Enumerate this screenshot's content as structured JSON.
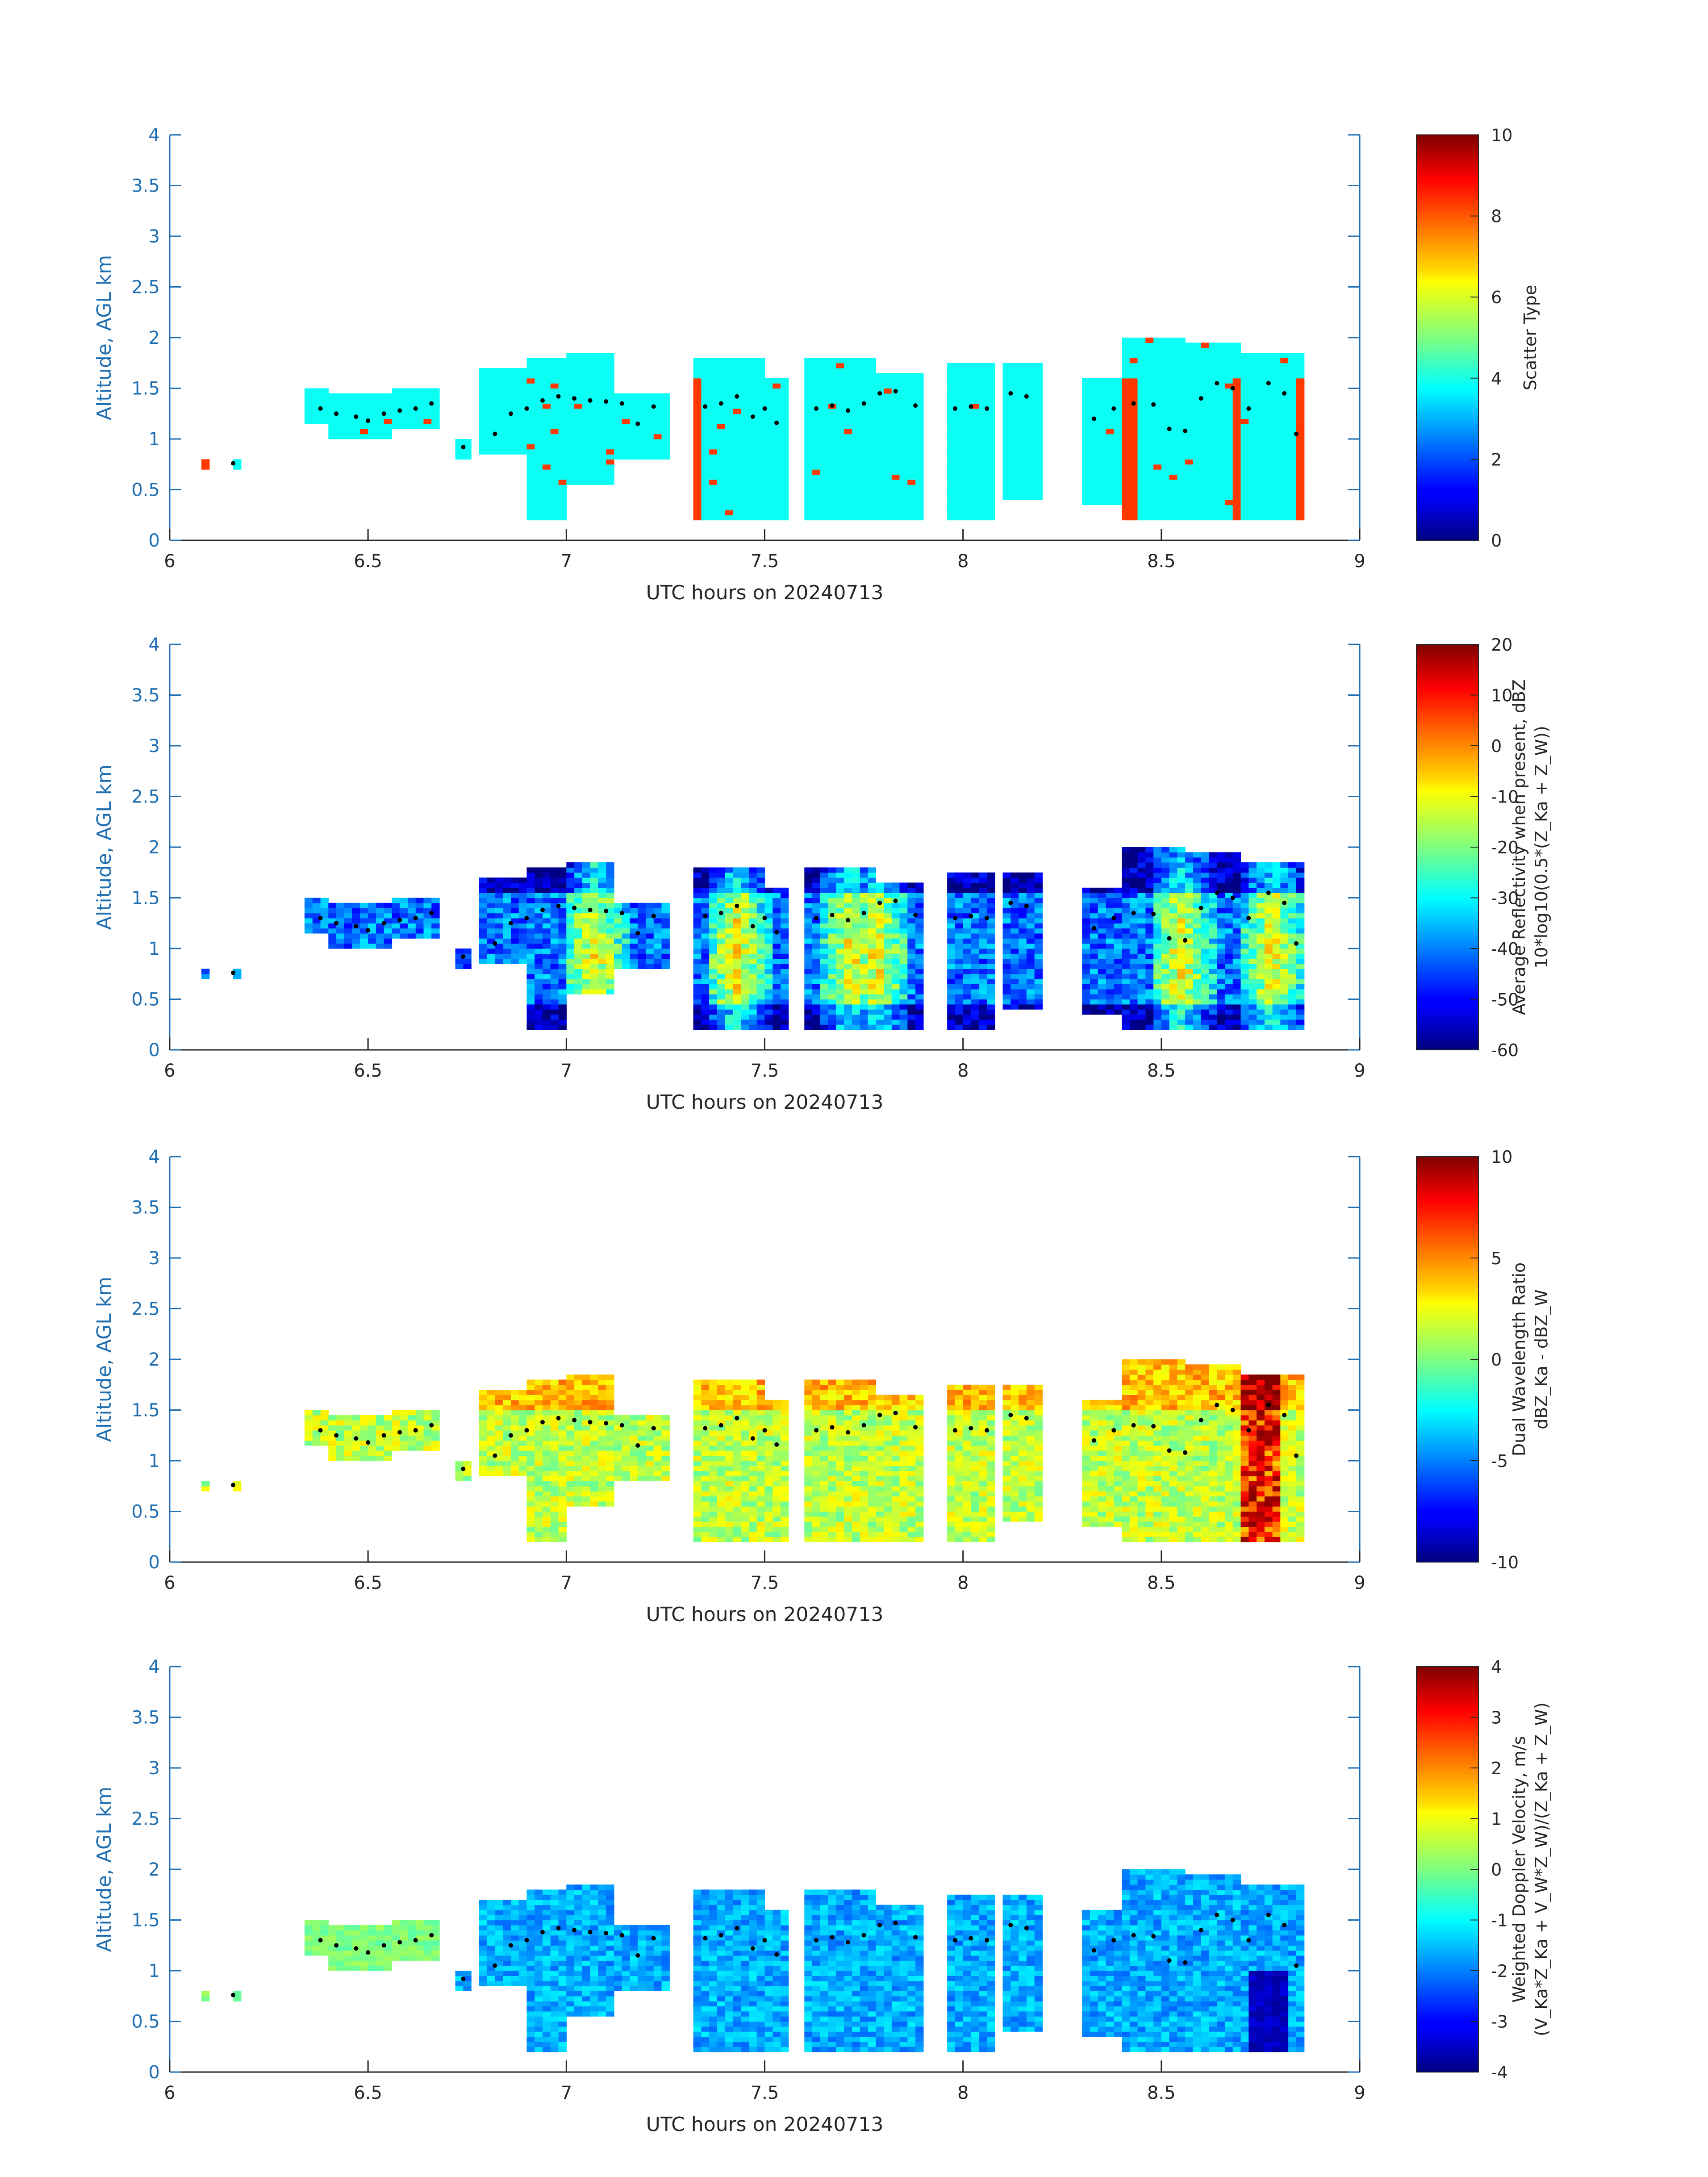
{
  "chart_data": [
    {
      "type": "heatmap",
      "panel": "scatter-type",
      "xlabel": "UTC hours on 20240713",
      "ylabel": "Altitude, AGL km",
      "xlim": [
        6,
        9
      ],
      "ylim": [
        0,
        4
      ],
      "x_ticks": [
        "6",
        "6.5",
        "7",
        "7.5",
        "8",
        "8.5",
        "9"
      ],
      "y_ticks": [
        "0",
        "0.5",
        "1",
        "1.5",
        "2",
        "2.5",
        "3",
        "3.5",
        "4"
      ],
      "colorbar": {
        "label_lines": [
          "Scatter Type"
        ],
        "limits": [
          0,
          10
        ],
        "ticks": [
          "0",
          "2",
          "4",
          "6",
          "8",
          "10"
        ]
      }
    },
    {
      "type": "heatmap",
      "panel": "reflectivity",
      "xlabel": "UTC hours on 20240713",
      "ylabel": "Altitude, AGL km",
      "xlim": [
        6,
        9
      ],
      "ylim": [
        0,
        4
      ],
      "x_ticks": [
        "6",
        "6.5",
        "7",
        "7.5",
        "8",
        "8.5",
        "9"
      ],
      "y_ticks": [
        "0",
        "0.5",
        "1",
        "1.5",
        "2",
        "2.5",
        "3",
        "3.5",
        "4"
      ],
      "colorbar": {
        "label_lines": [
          "Average Reflectivity when present, dBZ",
          "10*log10(0.5*(Z_Ka + Z_W))"
        ],
        "limits": [
          -60,
          20
        ],
        "ticks": [
          "-60",
          "-50",
          "-40",
          "-30",
          "-20",
          "-10",
          "0",
          "10",
          "20"
        ]
      }
    },
    {
      "type": "heatmap",
      "panel": "dwr",
      "xlabel": "UTC hours on 20240713",
      "ylabel": "Altitude, AGL km",
      "xlim": [
        6,
        9
      ],
      "ylim": [
        0,
        4
      ],
      "x_ticks": [
        "6",
        "6.5",
        "7",
        "7.5",
        "8",
        "8.5",
        "9"
      ],
      "y_ticks": [
        "0",
        "0.5",
        "1",
        "1.5",
        "2",
        "2.5",
        "3",
        "3.5",
        "4"
      ],
      "colorbar": {
        "label_lines": [
          "Dual Wavelength Ratio",
          "dBZ_Ka - dBZ_W"
        ],
        "limits": [
          -10,
          10
        ],
        "ticks": [
          "-10",
          "-5",
          "0",
          "5",
          "10"
        ]
      }
    },
    {
      "type": "heatmap",
      "panel": "velocity",
      "xlabel": "UTC hours on 20240713",
      "ylabel": "Altitude, AGL km",
      "xlim": [
        6,
        9
      ],
      "ylim": [
        0,
        4
      ],
      "x_ticks": [
        "6",
        "6.5",
        "7",
        "7.5",
        "8",
        "8.5",
        "9"
      ],
      "y_ticks": [
        "0",
        "0.5",
        "1",
        "1.5",
        "2",
        "2.5",
        "3",
        "3.5",
        "4"
      ],
      "colorbar": {
        "label_lines": [
          "Weighted Doppler Velocity, m/s",
          "(V_Ka*Z_Ka + V_W*Z_W)/(Z_Ka + Z_W)"
        ],
        "limits": [
          -4,
          4
        ],
        "ticks": [
          "-4",
          "-3",
          "-2",
          "-1",
          "0",
          "1",
          "2",
          "3",
          "4"
        ]
      }
    }
  ],
  "cloud_columns": [
    {
      "t0": 6.08,
      "t1": 6.1,
      "bottom": 0.68,
      "top": 0.78
    },
    {
      "t0": 6.15,
      "t1": 6.17,
      "bottom": 0.68,
      "top": 0.82
    },
    {
      "t0": 6.34,
      "t1": 6.4,
      "bottom": 1.15,
      "top": 1.5
    },
    {
      "t0": 6.4,
      "t1": 6.55,
      "bottom": 1.02,
      "top": 1.45
    },
    {
      "t0": 6.55,
      "t1": 6.68,
      "bottom": 1.1,
      "top": 1.48
    },
    {
      "t0": 6.72,
      "t1": 6.75,
      "bottom": 0.8,
      "top": 1.0
    },
    {
      "t0": 6.78,
      "t1": 6.9,
      "bottom": 0.85,
      "top": 1.7
    },
    {
      "t0": 6.9,
      "t1": 7.0,
      "bottom": 0.2,
      "top": 1.8
    },
    {
      "t0": 7.0,
      "t1": 7.12,
      "bottom": 0.55,
      "top": 1.85
    },
    {
      "t0": 7.12,
      "t1": 7.25,
      "bottom": 0.8,
      "top": 1.45
    },
    {
      "t0": 7.32,
      "t1": 7.5,
      "bottom": 0.2,
      "top": 1.8
    },
    {
      "t0": 7.5,
      "t1": 7.55,
      "bottom": 0.2,
      "top": 1.6
    },
    {
      "t0": 7.6,
      "t1": 7.78,
      "bottom": 0.2,
      "top": 1.8
    },
    {
      "t0": 7.78,
      "t1": 7.9,
      "bottom": 0.2,
      "top": 1.65
    },
    {
      "t0": 7.95,
      "t1": 8.08,
      "bottom": 0.2,
      "top": 1.75
    },
    {
      "t0": 8.1,
      "t1": 8.2,
      "bottom": 0.4,
      "top": 1.75
    },
    {
      "t0": 8.3,
      "t1": 8.4,
      "bottom": 0.35,
      "top": 1.6
    },
    {
      "t0": 8.4,
      "t1": 8.55,
      "bottom": 0.2,
      "top": 2.0
    },
    {
      "t0": 8.55,
      "t1": 8.7,
      "bottom": 0.2,
      "top": 1.95
    },
    {
      "t0": 8.7,
      "t1": 8.85,
      "bottom": 0.2,
      "top": 1.85
    }
  ],
  "cloud_base_points": [
    {
      "t": 6.16,
      "alt": 0.76
    },
    {
      "t": 6.38,
      "alt": 1.3
    },
    {
      "t": 6.42,
      "alt": 1.25
    },
    {
      "t": 6.47,
      "alt": 1.22
    },
    {
      "t": 6.5,
      "alt": 1.18
    },
    {
      "t": 6.54,
      "alt": 1.25
    },
    {
      "t": 6.58,
      "alt": 1.28
    },
    {
      "t": 6.62,
      "alt": 1.3
    },
    {
      "t": 6.66,
      "alt": 1.35
    },
    {
      "t": 6.74,
      "alt": 0.92
    },
    {
      "t": 6.82,
      "alt": 1.05
    },
    {
      "t": 6.86,
      "alt": 1.25
    },
    {
      "t": 6.9,
      "alt": 1.3
    },
    {
      "t": 6.94,
      "alt": 1.38
    },
    {
      "t": 6.98,
      "alt": 1.42
    },
    {
      "t": 7.02,
      "alt": 1.4
    },
    {
      "t": 7.06,
      "alt": 1.38
    },
    {
      "t": 7.1,
      "alt": 1.37
    },
    {
      "t": 7.14,
      "alt": 1.35
    },
    {
      "t": 7.18,
      "alt": 1.15
    },
    {
      "t": 7.22,
      "alt": 1.32
    },
    {
      "t": 7.35,
      "alt": 1.32
    },
    {
      "t": 7.39,
      "alt": 1.35
    },
    {
      "t": 7.43,
      "alt": 1.42
    },
    {
      "t": 7.47,
      "alt": 1.22
    },
    {
      "t": 7.5,
      "alt": 1.3
    },
    {
      "t": 7.53,
      "alt": 1.16
    },
    {
      "t": 7.63,
      "alt": 1.3
    },
    {
      "t": 7.67,
      "alt": 1.33
    },
    {
      "t": 7.71,
      "alt": 1.28
    },
    {
      "t": 7.75,
      "alt": 1.35
    },
    {
      "t": 7.79,
      "alt": 1.45
    },
    {
      "t": 7.83,
      "alt": 1.47
    },
    {
      "t": 7.88,
      "alt": 1.33
    },
    {
      "t": 7.98,
      "alt": 1.3
    },
    {
      "t": 8.02,
      "alt": 1.32
    },
    {
      "t": 8.06,
      "alt": 1.3
    },
    {
      "t": 8.12,
      "alt": 1.45
    },
    {
      "t": 8.16,
      "alt": 1.42
    },
    {
      "t": 8.33,
      "alt": 1.2
    },
    {
      "t": 8.38,
      "alt": 1.3
    },
    {
      "t": 8.43,
      "alt": 1.35
    },
    {
      "t": 8.48,
      "alt": 1.34
    },
    {
      "t": 8.52,
      "alt": 1.1
    },
    {
      "t": 8.56,
      "alt": 1.08
    },
    {
      "t": 8.6,
      "alt": 1.4
    },
    {
      "t": 8.64,
      "alt": 1.55
    },
    {
      "t": 8.68,
      "alt": 1.5
    },
    {
      "t": 8.72,
      "alt": 1.3
    },
    {
      "t": 8.77,
      "alt": 1.55
    },
    {
      "t": 8.81,
      "alt": 1.45
    },
    {
      "t": 8.84,
      "alt": 1.05
    }
  ]
}
